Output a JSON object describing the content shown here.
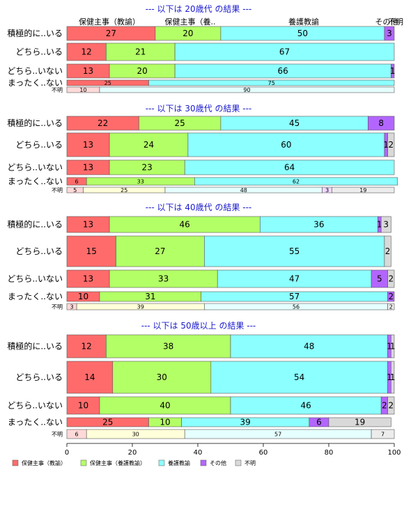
{
  "chart_data": {
    "type": "bar",
    "orientation": "horizontal",
    "stacked": true,
    "normalized": true,
    "xlim": [
      0,
      100
    ],
    "x_ticks": [
      0,
      20,
      40,
      60,
      80,
      100
    ],
    "legend_position": "bottom-left",
    "colors": [
      "#ff6b6b",
      "#b3ff66",
      "#8cffff",
      "#b366ff",
      "#d9d9d9"
    ],
    "categories_legend": [
      "保健主事（教諭）",
      "保健主事（養護教諭）",
      "養護教諭",
      "その他",
      "不明"
    ],
    "column_headers": [
      "保健主事（教諭）",
      "保健主事（養..",
      "養護教諭",
      "その他",
      "不明"
    ],
    "panels": [
      {
        "title": "--- 以下は 20歳代 の結果 ---",
        "rows": [
          {
            "label": "積極的に..いる",
            "values": [
              27,
              20,
              50,
              3,
              0
            ],
            "small": false
          },
          {
            "label": "どちら..いる",
            "values": [
              12,
              21,
              67,
              0,
              0
            ],
            "small": false
          },
          {
            "label": "どちら..いない",
            "values": [
              13,
              20,
              66,
              1,
              0
            ],
            "small": false
          },
          {
            "label": "まったく..ない",
            "values": [
              25,
              0,
              75,
              0,
              0
            ],
            "small": false
          },
          {
            "label": "不明",
            "values": [
              10,
              0,
              90,
              0,
              0
            ],
            "small": true
          }
        ]
      },
      {
        "title": "--- 以下は 30歳代 の結果 ---",
        "rows": [
          {
            "label": "積極的に..いる",
            "values": [
              22,
              25,
              45,
              8,
              0
            ],
            "small": false
          },
          {
            "label": "どちら..いる",
            "values": [
              13,
              24,
              60,
              1,
              2
            ],
            "small": false
          },
          {
            "label": "どちら..いない",
            "values": [
              13,
              23,
              64,
              0,
              0
            ],
            "small": false
          },
          {
            "label": "まったく..ない",
            "values": [
              6,
              33,
              62,
              0,
              0
            ],
            "small": false
          },
          {
            "label": "不明",
            "values": [
              5,
              25,
              48,
              3,
              19
            ],
            "small": true
          }
        ]
      },
      {
        "title": "--- 以下は 40歳代 の結果 ---",
        "rows": [
          {
            "label": "積極的に..いる",
            "values": [
              13,
              46,
              36,
              1,
              3
            ],
            "small": false
          },
          {
            "label": "どちら..いる",
            "values": [
              15,
              27,
              55,
              0,
              2
            ],
            "small": false
          },
          {
            "label": "どちら..いない",
            "values": [
              13,
              33,
              47,
              5,
              2
            ],
            "small": false
          },
          {
            "label": "まったく..ない",
            "values": [
              10,
              31,
              57,
              2,
              0
            ],
            "small": false
          },
          {
            "label": "不明",
            "values": [
              3,
              39,
              56,
              0,
              2
            ],
            "small": true
          }
        ]
      },
      {
        "title": "--- 以下は 50歳以上 の結果 ---",
        "rows": [
          {
            "label": "積極的に..いる",
            "values": [
              12,
              38,
              48,
              1,
              1
            ],
            "small": false
          },
          {
            "label": "どちら..いる",
            "values": [
              14,
              30,
              54,
              1,
              1
            ],
            "small": false
          },
          {
            "label": "どちら..いない",
            "values": [
              10,
              40,
              46,
              2,
              2
            ],
            "small": false
          },
          {
            "label": "まったく..ない",
            "values": [
              25,
              10,
              39,
              6,
              19
            ],
            "small": false
          },
          {
            "label": "不明",
            "values": [
              6,
              30,
              57,
              0,
              7
            ],
            "small": true
          }
        ]
      }
    ]
  }
}
